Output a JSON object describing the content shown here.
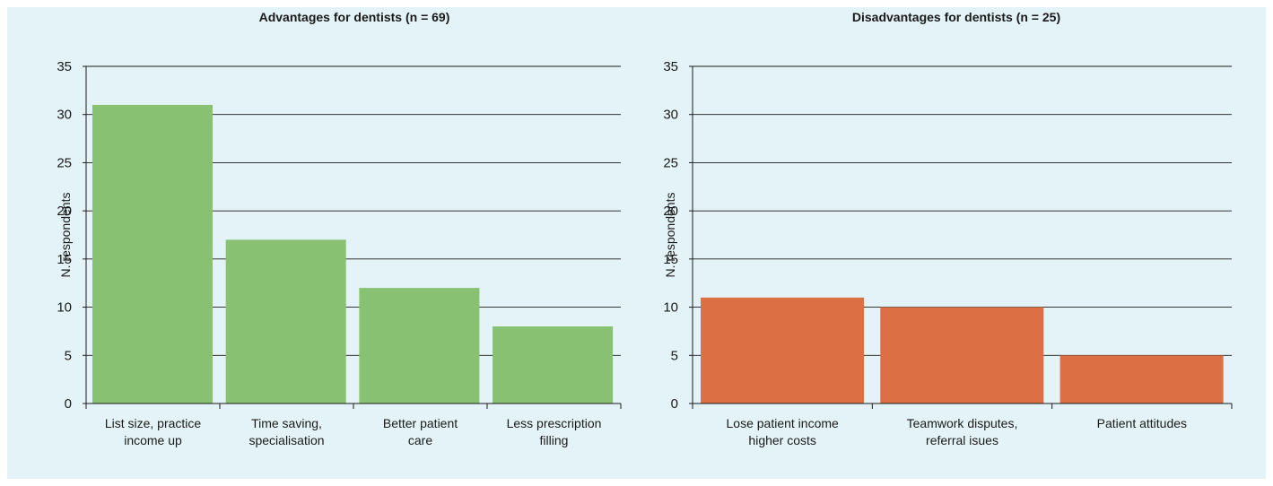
{
  "chart_data": [
    {
      "type": "bar",
      "title": "Advantages for dentists (n = 69)",
      "ylabel": "N. respondents",
      "xlabel": "",
      "ylim": [
        0,
        35
      ],
      "yticks": [
        0,
        5,
        10,
        15,
        20,
        25,
        30,
        35
      ],
      "categories": [
        [
          "List size, practice",
          "income up"
        ],
        [
          "Time saving,",
          "specialisation"
        ],
        [
          "Better patient",
          "care"
        ],
        [
          "Less prescription",
          "filling"
        ]
      ],
      "values": [
        31,
        17,
        12,
        8
      ],
      "color": "#88c172",
      "grid": true,
      "legend": "none"
    },
    {
      "type": "bar",
      "title": "Disadvantages for dentists (n = 25)",
      "ylabel": "N. respondents",
      "xlabel": "",
      "ylim": [
        0,
        35
      ],
      "yticks": [
        0,
        5,
        10,
        15,
        20,
        25,
        30,
        35
      ],
      "categories": [
        [
          "Lose patient income",
          "higher costs"
        ],
        [
          "Teamwork disputes,",
          "referral isues"
        ],
        [
          "Patient attitudes"
        ]
      ],
      "values": [
        11,
        10,
        5
      ],
      "color": "#dc7044",
      "grid": true,
      "legend": "none"
    }
  ]
}
